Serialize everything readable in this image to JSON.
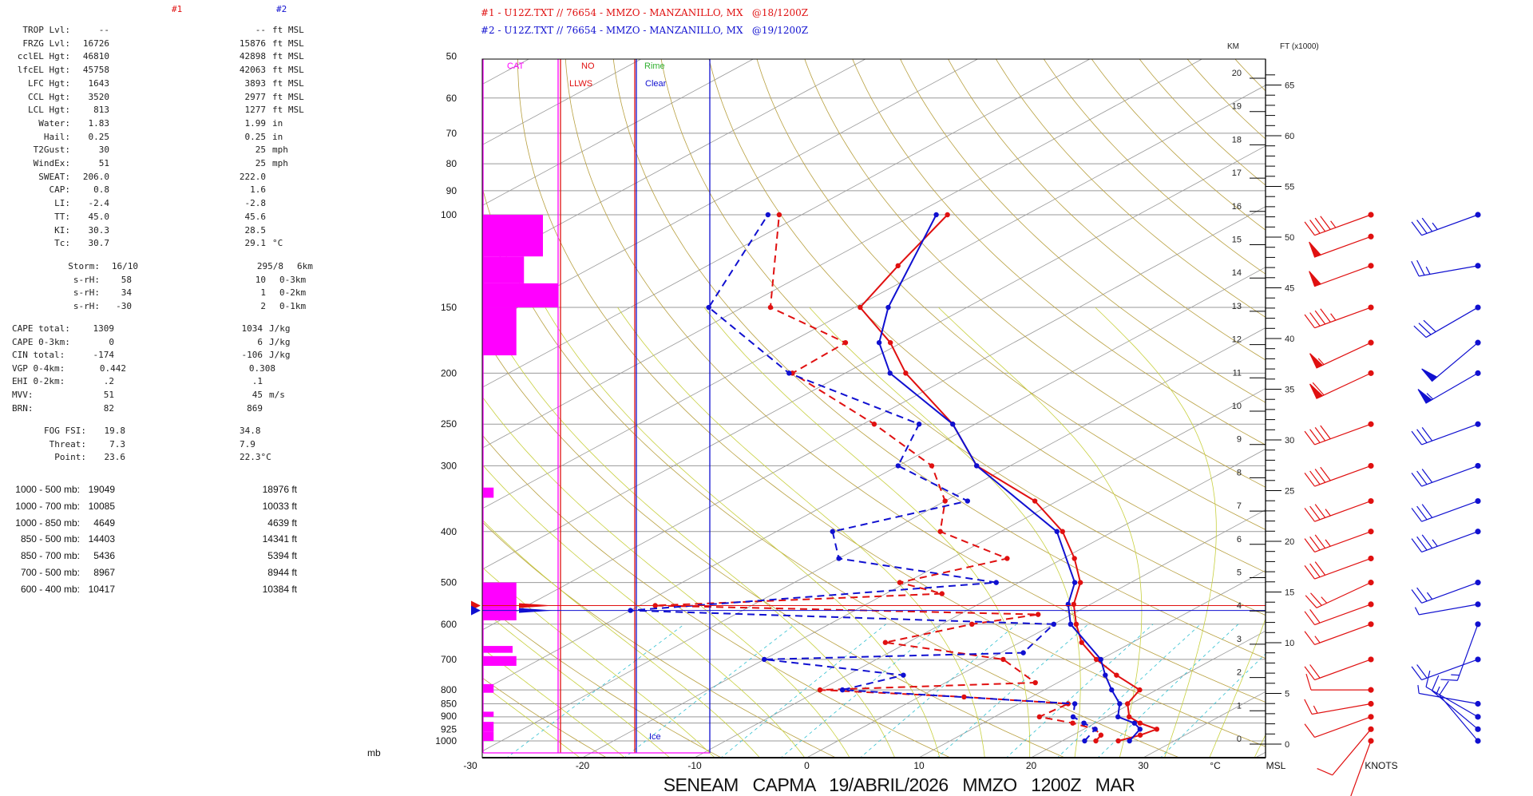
{
  "left": {
    "col1_header": "#1",
    "col2_header": "#2",
    "rows": [
      {
        "label": "TROP Lvl:",
        "v1": "--",
        "v2": "--",
        "unit": "ft MSL"
      },
      {
        "label": "FRZG Lvl:",
        "v1": "16726",
        "v2": "15876",
        "unit": "ft MSL"
      },
      {
        "label": "cclEL Hgt:",
        "v1": "46810",
        "v2": "42898",
        "unit": "ft MSL"
      },
      {
        "label": "lfcEL Hgt:",
        "v1": "45758",
        "v2": "42063",
        "unit": "ft MSL"
      },
      {
        "label": "LFC Hgt:",
        "v1": "1643",
        "v2": "3893",
        "unit": "ft MSL"
      },
      {
        "label": "CCL Hgt:",
        "v1": "3520",
        "v2": "2977",
        "unit": "ft MSL"
      },
      {
        "label": "LCL Hgt:",
        "v1": "813",
        "v2": "1277",
        "unit": "ft MSL"
      },
      {
        "label": "Water:",
        "v1": "1.83",
        "v2": "1.99",
        "unit": "in"
      },
      {
        "label": "Hail:",
        "v1": "0.25",
        "v2": "0.25",
        "unit": "in"
      },
      {
        "label": "T2Gust:",
        "v1": "30",
        "v2": "25",
        "unit": "mph"
      },
      {
        "label": "WindEx:",
        "v1": "51",
        "v2": "25",
        "unit": "mph"
      },
      {
        "label": "SWEAT:",
        "v1": "206.0",
        "v2": "222.0",
        "unit": ""
      },
      {
        "label": "CAP:",
        "v1": "0.8",
        "v2": "1.6",
        "unit": ""
      },
      {
        "label": "LI:",
        "v1": "-2.4",
        "v2": "-2.8",
        "unit": ""
      },
      {
        "label": "TT:",
        "v1": "45.0",
        "v2": "45.6",
        "unit": ""
      },
      {
        "label": "KI:",
        "v1": "30.3",
        "v2": "28.5",
        "unit": ""
      },
      {
        "label": "Tc:",
        "v1": "30.7",
        "v2": "29.1",
        "unit": "°C"
      }
    ],
    "storm": [
      {
        "label": "Storm:",
        "v1": "16/10",
        "v2": "295/8",
        "unit": "6km"
      },
      {
        "label": "s-rH:",
        "v1": "58",
        "v2": "10",
        "unit": "0-3km"
      },
      {
        "label": "s-rH:",
        "v1": "34",
        "v2": "1",
        "unit": "0-2km"
      },
      {
        "label": "s-rH:",
        "v1": "-30",
        "v2": "2",
        "unit": "0-1km"
      }
    ],
    "cape": [
      {
        "label": "CAPE total:",
        "v1": "1309",
        "v2": "1034",
        "unit": "J/kg"
      },
      {
        "label": "CAPE 0-3km:",
        "v1": "0",
        "v2": "6",
        "unit": "J/kg"
      },
      {
        "label": "CIN total:",
        "v1": "-174",
        "v2": "-106",
        "unit": "J/kg"
      },
      {
        "label": "VGP 0-4km:",
        "v1": "0.442",
        "v2": "0.308",
        "unit": ""
      },
      {
        "label": "EHI 0-2km:",
        "v1": ".2",
        "v2": ".1",
        "unit": ""
      },
      {
        "label": "MVV:",
        "v1": "51",
        "v2": "45",
        "unit": "m/s"
      },
      {
        "label": "BRN:",
        "v1": "82",
        "v2": "869",
        "unit": ""
      }
    ],
    "fog": [
      {
        "label": "FOG FSI:",
        "v1": "19.8",
        "v2": "34.8"
      },
      {
        "label": "Threat:",
        "v1": "7.3",
        "v2": "7.9"
      },
      {
        "label": "Point:",
        "v1": "23.6",
        "v2": "22.3°C"
      }
    ],
    "thickness": [
      {
        "label": "1000 - 500 mb:",
        "v1": "19049",
        "v2": "18976 ft"
      },
      {
        "label": "1000 - 700 mb:",
        "v1": "10085",
        "v2": "10033 ft"
      },
      {
        "label": "1000 - 850 mb:",
        "v1": "4649",
        "v2": "4639 ft"
      },
      {
        "label": "850 - 500 mb:",
        "v1": "14403",
        "v2": "14341 ft"
      },
      {
        "label": "850 - 700 mb:",
        "v1": "5436",
        "v2": "5394 ft"
      },
      {
        "label": "700 - 500 mb:",
        "v1": "8967",
        "v2": "8944 ft"
      },
      {
        "label": "600 - 400 mb:",
        "v1": "10417",
        "v2": "10384 ft"
      }
    ]
  },
  "chart_data": {
    "type": "skew-t",
    "title": "SENEAM   CAPMA   19/ABRIL/2026   MMZO   1200Z   MAR",
    "legend": [
      {
        "text": "#1 - U12Z.TXT // 76654 - MMZO - MANZANILLO, MX   @18/1200Z",
        "color": "#e01010"
      },
      {
        "text": "#2 - U12Z.TXT // 76654 - MMZO - MANZANILLO, MX   @19/1200Z",
        "color": "#1010d0"
      }
    ],
    "ylabel": "mb",
    "xlabel_unit": "°C",
    "km_label": "KM",
    "ft_label": "FT (x1000)",
    "msl_label": "MSL",
    "knots_label": "KNOTS",
    "pressure_ticks": [
      50,
      60,
      70,
      80,
      90,
      100,
      150,
      200,
      250,
      300,
      400,
      500,
      600,
      700,
      800,
      850,
      900,
      925,
      1000
    ],
    "temp_ticks": [
      -30,
      -20,
      -10,
      0,
      10,
      20,
      30
    ],
    "km_ticks": [
      0,
      1,
      2,
      3,
      4,
      5,
      6,
      7,
      8,
      9,
      10,
      11,
      12,
      13,
      14,
      15,
      16,
      17,
      18,
      19,
      20
    ],
    "ft_ticks": [
      0,
      5,
      10,
      15,
      20,
      25,
      30,
      35,
      40,
      45,
      50,
      55,
      60,
      65
    ],
    "xlim": [
      -30,
      40
    ],
    "ylim_mb": [
      1076,
      50
    ],
    "panel_labels": {
      "cat": "CAT",
      "no": "NO",
      "llws": "LLWS",
      "rime": "Rime",
      "clear": "Clear",
      "ice": "Ice"
    },
    "freezing_level_mb": {
      "s1": 553,
      "s2": 565
    },
    "cat_index": [
      [
        100,
        120,
        0.8
      ],
      [
        120,
        135,
        0.55
      ],
      [
        135,
        150,
        1.0
      ],
      [
        150,
        185,
        0.45
      ],
      [
        330,
        345,
        0.15
      ],
      [
        500,
        560,
        0.45
      ],
      [
        560,
        590,
        0.45
      ],
      [
        660,
        680,
        0.4
      ],
      [
        690,
        720,
        0.45
      ],
      [
        780,
        810,
        0.15
      ],
      [
        880,
        900,
        0.15
      ],
      [
        920,
        960,
        0.15
      ],
      [
        960,
        1000,
        0.15
      ]
    ],
    "series": [
      {
        "name": "#1 temperature",
        "color": "#e01010",
        "dash": false,
        "points": [
          [
            1000,
            25
          ],
          [
            975,
            26
          ],
          [
            950,
            26.5
          ],
          [
            925,
            24
          ],
          [
            900,
            22
          ],
          [
            850,
            19.7
          ],
          [
            800,
            18.5
          ],
          [
            750,
            14
          ],
          [
            700,
            9.6
          ],
          [
            650,
            5.5
          ],
          [
            600,
            2
          ],
          [
            550,
            -1.5
          ],
          [
            500,
            -4.5
          ],
          [
            450,
            -9
          ],
          [
            400,
            -14.5
          ],
          [
            350,
            -22
          ],
          [
            300,
            -33
          ],
          [
            250,
            -42
          ],
          [
            200,
            -54.6
          ],
          [
            175,
            -61
          ],
          [
            150,
            -69.5
          ],
          [
            125,
            -73
          ],
          [
            100,
            -77
          ]
        ]
      },
      {
        "name": "#1 dewpoint",
        "color": "#e01010",
        "dash": true,
        "points": [
          [
            1000,
            23
          ],
          [
            975,
            22.5
          ],
          [
            950,
            21
          ],
          [
            925,
            18
          ],
          [
            900,
            14
          ],
          [
            850,
            14.4
          ],
          [
            825,
            4
          ],
          [
            800,
            -10
          ],
          [
            775,
            8
          ],
          [
            700,
            1.3
          ],
          [
            650,
            -12
          ],
          [
            600,
            -7.3
          ],
          [
            575,
            -3
          ],
          [
            553,
            -38.6
          ],
          [
            525,
            -15
          ],
          [
            500,
            -20.6
          ],
          [
            450,
            -15
          ],
          [
            400,
            -25.4
          ],
          [
            350,
            -30
          ],
          [
            300,
            -37
          ],
          [
            250,
            -49
          ],
          [
            200,
            -64.7
          ],
          [
            175,
            -65
          ],
          [
            150,
            -77.5
          ],
          [
            100,
            -92
          ]
        ]
      },
      {
        "name": "#2 temperature",
        "color": "#1010d0",
        "dash": false,
        "points": [
          [
            1000,
            26
          ],
          [
            950,
            25
          ],
          [
            925,
            23.5
          ],
          [
            900,
            21
          ],
          [
            850,
            19
          ],
          [
            800,
            16
          ],
          [
            750,
            13
          ],
          [
            700,
            10
          ],
          [
            600,
            1.5
          ],
          [
            550,
            -2
          ],
          [
            500,
            -5
          ],
          [
            400,
            -15
          ],
          [
            300,
            -33
          ],
          [
            250,
            -42
          ],
          [
            200,
            -56
          ],
          [
            175,
            -62
          ],
          [
            150,
            -67
          ],
          [
            100,
            -78
          ]
        ]
      },
      {
        "name": "#2 dewpoint",
        "color": "#1010d0",
        "dash": true,
        "points": [
          [
            1000,
            22
          ],
          [
            950,
            21
          ],
          [
            925,
            19
          ],
          [
            900,
            17
          ],
          [
            850,
            15
          ],
          [
            800,
            -8
          ],
          [
            750,
            -5
          ],
          [
            700,
            -20
          ],
          [
            680,
            2
          ],
          [
            600,
            0
          ],
          [
            565,
            -40
          ],
          [
            500,
            -12
          ],
          [
            450,
            -30
          ],
          [
            400,
            -35
          ],
          [
            350,
            -28
          ],
          [
            300,
            -40
          ],
          [
            250,
            -45
          ],
          [
            200,
            -65
          ],
          [
            150,
            -83
          ],
          [
            100,
            -93
          ]
        ]
      }
    ],
    "winds": [
      {
        "name": "#1",
        "color": "#e01010",
        "levels": [
          [
            1000,
            200,
            5
          ],
          [
            950,
            220,
            10
          ],
          [
            900,
            250,
            10
          ],
          [
            850,
            260,
            15
          ],
          [
            800,
            270,
            10
          ],
          [
            700,
            250,
            20
          ],
          [
            600,
            250,
            15
          ],
          [
            550,
            250,
            20
          ],
          [
            500,
            245,
            25
          ],
          [
            450,
            250,
            30
          ],
          [
            400,
            250,
            35
          ],
          [
            350,
            250,
            35
          ],
          [
            300,
            250,
            40
          ],
          [
            250,
            250,
            40
          ],
          [
            200,
            245,
            60
          ],
          [
            175,
            245,
            55
          ],
          [
            150,
            250,
            45
          ],
          [
            125,
            250,
            50
          ],
          [
            110,
            250,
            50
          ],
          [
            100,
            250,
            45
          ]
        ]
      },
      {
        "name": "#2",
        "color": "#1010d0",
        "levels": [
          [
            1000,
            320,
            10
          ],
          [
            950,
            310,
            15
          ],
          [
            900,
            300,
            10
          ],
          [
            850,
            280,
            5
          ],
          [
            700,
            250,
            20
          ],
          [
            600,
            200,
            15
          ],
          [
            550,
            260,
            5
          ],
          [
            500,
            250,
            25
          ],
          [
            400,
            250,
            35
          ],
          [
            350,
            250,
            30
          ],
          [
            300,
            250,
            30
          ],
          [
            250,
            250,
            30
          ],
          [
            200,
            240,
            55
          ],
          [
            175,
            230,
            50
          ],
          [
            150,
            240,
            30
          ],
          [
            125,
            260,
            25
          ],
          [
            100,
            250,
            35
          ]
        ]
      }
    ]
  }
}
